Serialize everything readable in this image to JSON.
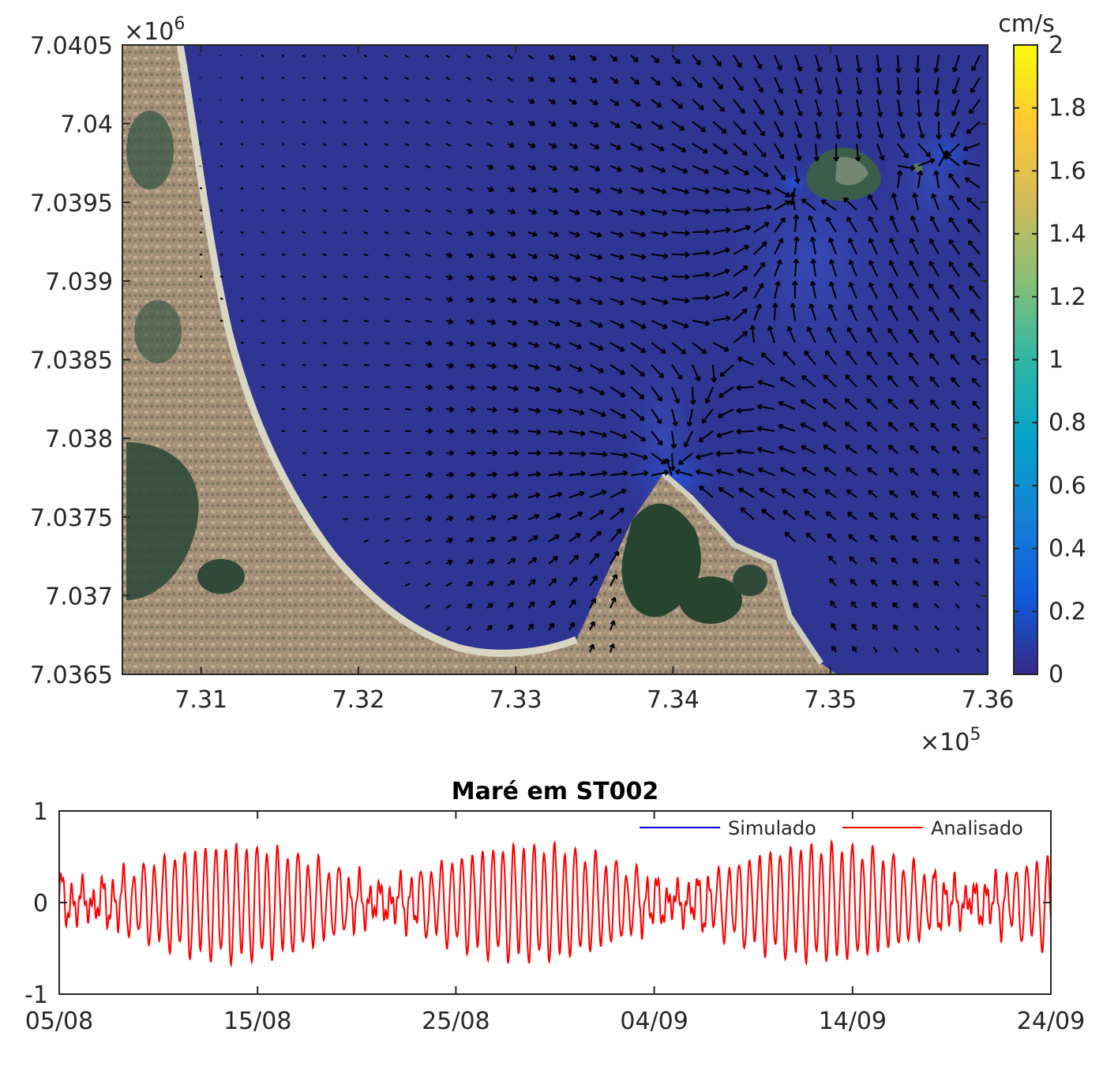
{
  "chart_data": [
    {
      "type": "heatmap",
      "description_kind": "current-speed map with velocity vectors over satellite basemap",
      "x_ticks": [
        "7.31",
        "7.32",
        "7.33",
        "7.34",
        "7.35",
        "7.36"
      ],
      "x_tick_values": [
        731000,
        732000,
        733000,
        734000,
        735000,
        736000
      ],
      "x_exponent_label": "×10",
      "x_exponent_power": "5",
      "xlim": [
        730500,
        736000
      ],
      "y_ticks": [
        "7.0405",
        "7.04",
        "7.0395",
        "7.039",
        "7.0385",
        "7.038",
        "7.0375",
        "7.037",
        "7.0365"
      ],
      "y_tick_values": [
        7040500,
        7040000,
        7039500,
        7039000,
        7038500,
        7038000,
        7037500,
        7037000,
        7036500
      ],
      "y_exponent_label": "×10",
      "y_exponent_power": "6",
      "ylim": [
        7036500,
        7040500
      ],
      "colorbar": {
        "unit": "cm/s",
        "ticks": [
          "2",
          "1.8",
          "1.6",
          "1.4",
          "1.2",
          "1",
          "0.8",
          "0.6",
          "0.4",
          "0.2",
          "0"
        ],
        "range": [
          0,
          2
        ],
        "colormap": [
          "#352a87",
          "#0f5cdd",
          "#1481d6",
          "#06a4ca",
          "#2eb7a4",
          "#87bf77",
          "#d1bb59",
          "#fec832",
          "#f9fb0e"
        ]
      },
      "colors": {
        "sea": "#2e3593",
        "land": "#a08c74",
        "vegetation": "#2f4a38",
        "beach": "#d9d6c2",
        "arrows": "#000000"
      }
    },
    {
      "type": "line",
      "title": "Maré em ST002",
      "x_ticks": [
        "05/08",
        "15/08",
        "25/08",
        "04/09",
        "14/09",
        "24/09"
      ],
      "x_tick_days": [
        0,
        10,
        20,
        30,
        40,
        50
      ],
      "xlim_days": [
        0,
        50
      ],
      "y_ticks": [
        "1",
        "0",
        "-1"
      ],
      "ylim": [
        -1,
        1
      ],
      "legend_position": "top-right",
      "series": [
        {
          "name": "Simulado",
          "color": "#0000ff"
        },
        {
          "name": "Analisado",
          "color": "#ff0000"
        }
      ]
    }
  ]
}
